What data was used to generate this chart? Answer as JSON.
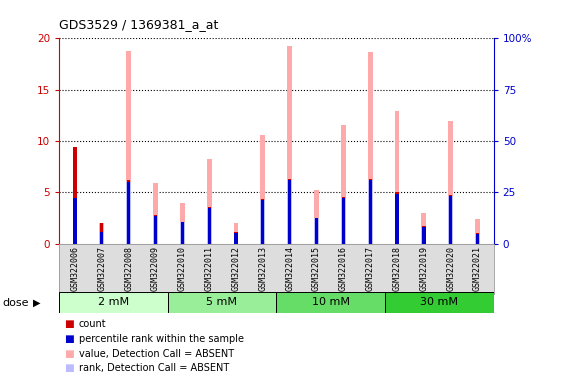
{
  "title": "GDS3529 / 1369381_a_at",
  "samples": [
    "GSM322006",
    "GSM322007",
    "GSM322008",
    "GSM322009",
    "GSM322010",
    "GSM322011",
    "GSM322012",
    "GSM322013",
    "GSM322014",
    "GSM322015",
    "GSM322016",
    "GSM322017",
    "GSM322018",
    "GSM322019",
    "GSM322020",
    "GSM322021"
  ],
  "absent_values": [
    9.4,
    2.0,
    18.8,
    5.9,
    4.0,
    8.3,
    2.0,
    10.6,
    19.3,
    5.2,
    11.6,
    18.7,
    12.9,
    3.0,
    12.0,
    2.4
  ],
  "absent_rank_values": [
    4.5,
    1.2,
    6.0,
    2.7,
    2.1,
    3.5,
    1.1,
    4.3,
    6.2,
    2.5,
    4.5,
    6.2,
    4.9,
    1.6,
    4.7,
    1.0
  ],
  "count_values": [
    9.4,
    2.0,
    6.2,
    2.8,
    2.1,
    3.6,
    1.2,
    4.4,
    6.3,
    2.5,
    4.6,
    6.3,
    5.0,
    1.7,
    4.8,
    1.1
  ],
  "rank_values": [
    4.5,
    1.2,
    6.0,
    2.7,
    2.1,
    3.5,
    1.1,
    4.3,
    6.2,
    2.5,
    4.5,
    6.2,
    4.9,
    1.6,
    4.7,
    1.0
  ],
  "dose_groups": [
    {
      "label": "2 mM",
      "start": 0,
      "end": 4,
      "color": "#ccffcc"
    },
    {
      "label": "5 mM",
      "start": 4,
      "end": 8,
      "color": "#99ee99"
    },
    {
      "label": "10 mM",
      "start": 8,
      "end": 12,
      "color": "#66dd66"
    },
    {
      "label": "30 mM",
      "start": 12,
      "end": 16,
      "color": "#33cc33"
    }
  ],
  "ylim_left": [
    0,
    20
  ],
  "ylim_right": [
    0,
    100
  ],
  "yticks_left": [
    0,
    5,
    10,
    15,
    20
  ],
  "yticks_right": [
    0,
    25,
    50,
    75,
    100
  ],
  "ytick_labels_right": [
    "0",
    "25",
    "50",
    "75",
    "100%"
  ],
  "left_axis_color": "#cc0000",
  "right_axis_color": "#0000cc",
  "absent_value_color": "#ffaaaa",
  "absent_rank_color": "#bbbbff",
  "count_color": "#cc0000",
  "rank_color": "#0000cc",
  "dose_label": "dose",
  "legend_items": [
    {
      "label": "count",
      "color": "#cc0000"
    },
    {
      "label": "percentile rank within the sample",
      "color": "#0000cc"
    },
    {
      "label": "value, Detection Call = ABSENT",
      "color": "#ffaaaa"
    },
    {
      "label": "rank, Detection Call = ABSENT",
      "color": "#bbbbff"
    }
  ]
}
